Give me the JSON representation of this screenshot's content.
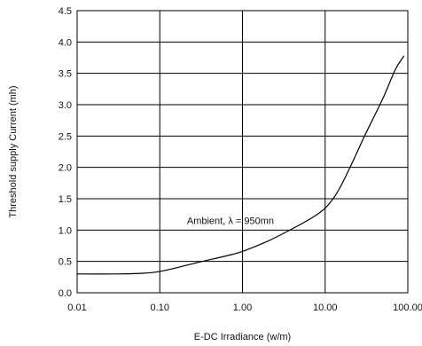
{
  "chart_data": {
    "type": "line",
    "title": "",
    "xlabel": "E-DC Irradiance (w/m)",
    "ylabel": "Threshold supply Current (mh)",
    "x_scale": "log",
    "xlim": [
      0.01,
      100
    ],
    "ylim": [
      0,
      4.5
    ],
    "grid": true,
    "x_ticks": [
      0.01,
      0.1,
      1,
      10,
      100
    ],
    "x_tick_labels": [
      "0.01",
      "0.10",
      "1.00",
      "10.00",
      "100.00"
    ],
    "y_ticks": [
      0,
      0.5,
      1,
      1.5,
      2,
      2.5,
      3,
      3.5,
      4,
      4.5
    ],
    "y_tick_labels": [
      "0.0",
      "0.5",
      "1.0",
      "1.5",
      "2.0",
      "2.5",
      "3.0",
      "3.5",
      "4.0",
      "4.5"
    ],
    "annotation": {
      "text": "Ambient, λ = 950mn",
      "x": 1.2,
      "y": 1.15
    },
    "series": [
      {
        "name": "",
        "color": "#000000",
        "x": [
          0.01,
          0.03,
          0.06,
          0.09,
          0.15,
          0.3,
          0.6,
          1.0,
          2.0,
          4.0,
          7.0,
          10.0,
          14.0,
          20.0,
          30.0,
          50.0,
          70.0,
          90.0
        ],
        "y": [
          0.3,
          0.3,
          0.31,
          0.33,
          0.39,
          0.49,
          0.58,
          0.66,
          0.82,
          1.02,
          1.2,
          1.35,
          1.6,
          2.0,
          2.5,
          3.1,
          3.55,
          3.78
        ]
      }
    ]
  }
}
